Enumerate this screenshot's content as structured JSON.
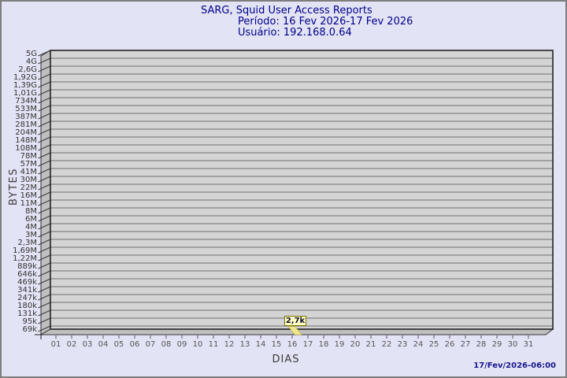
{
  "window": {
    "background": "#e3e3f6",
    "border_color": "#7e7e7e"
  },
  "header": {
    "title": "SARG, Squid User Access Reports",
    "period_line": "Período: 16 Fev 2026-17 Fev 2026",
    "user_line": "Usuário: 192.168.0.64",
    "color": "#00008b"
  },
  "footer": {
    "timestamp": "17/Fev/2026-06:00",
    "color": "#16168c"
  },
  "chart_data": {
    "type": "bar",
    "title": "SARG, Squid User Access Reports",
    "period": "16 Fev 2026-17 Fev 2026",
    "user": "192.168.0.64",
    "xlabel": "DIAS",
    "ylabel": "BYTES",
    "y_scale": "log",
    "grid": true,
    "legend_position": "none",
    "y_tick_labels": [
      "5G",
      "4G",
      "2,6G",
      "1,92G",
      "1,39G",
      "1,01G",
      "734M",
      "533M",
      "387M",
      "281M",
      "204M",
      "148M",
      "108M",
      "78M",
      "57M",
      "41M",
      "30M",
      "22M",
      "16M",
      "11M",
      "8M",
      "6M",
      "4M",
      "3M",
      "2,3M",
      "1,69M",
      "1,22M",
      "889k",
      "646k",
      "469k",
      "341k",
      "247k",
      "180k",
      "131k",
      "95k",
      "69k"
    ],
    "x_tick_labels": [
      "01",
      "02",
      "03",
      "04",
      "05",
      "06",
      "07",
      "08",
      "09",
      "10",
      "11",
      "12",
      "13",
      "14",
      "15",
      "16",
      "17",
      "18",
      "19",
      "20",
      "21",
      "22",
      "23",
      "24",
      "25",
      "26",
      "27",
      "28",
      "29",
      "30",
      "31"
    ],
    "x_range": [
      1,
      31
    ],
    "points": [
      {
        "day": "16",
        "label": "2,7k",
        "approx_bytes": 2700
      }
    ],
    "colors": {
      "face": "#d4d4d4",
      "wall": "#bfbfbf",
      "grid": "#6e6e6e",
      "frame": "#222222",
      "tick": "#3a3a3a",
      "bar": "#f0e68c",
      "bar_edge": "#c8b84a",
      "flag_bg": "#ffffc4",
      "flag_border": "#7a7000"
    }
  }
}
